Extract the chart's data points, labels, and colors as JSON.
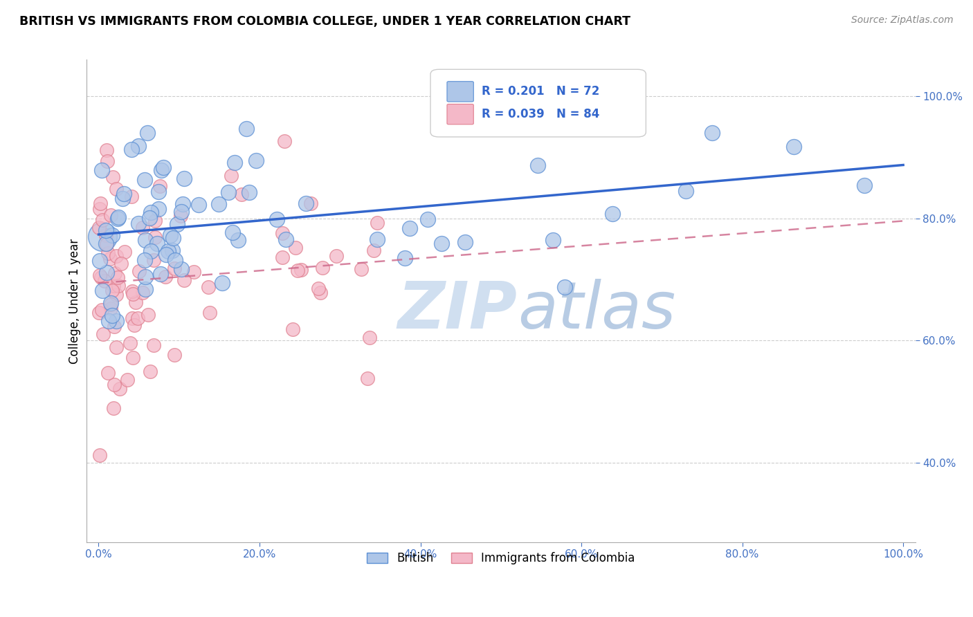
{
  "title": "BRITISH VS IMMIGRANTS FROM COLOMBIA COLLEGE, UNDER 1 YEAR CORRELATION CHART",
  "source": "Source: ZipAtlas.com",
  "ylabel": "College, Under 1 year",
  "R_british": 0.201,
  "N_british": 72,
  "R_colombia": 0.039,
  "N_colombia": 84,
  "british_color": "#aec6e8",
  "british_edge_color": "#5b8fd4",
  "british_line_color": "#3366cc",
  "colombia_color": "#f4b8c8",
  "colombia_edge_color": "#e08090",
  "colombia_line_color": "#cc6688",
  "watermark_zip": "ZIP",
  "watermark_atlas": "atlas",
  "xtick_labels": [
    "0.0%",
    "20.0%",
    "40.0%",
    "60.0%",
    "80.0%",
    "100.0%"
  ],
  "ytick_labels": [
    "40.0%",
    "60.0%",
    "80.0%",
    "100.0%"
  ],
  "ytick_vals": [
    0.4,
    0.6,
    0.8,
    1.0
  ],
  "xtick_vals": [
    0.0,
    0.2,
    0.4,
    0.6,
    0.8,
    1.0
  ],
  "british_scatter_seed": 12,
  "colombia_scatter_seed": 7,
  "legend_label_british": "British",
  "legend_label_colombia": "Immigrants from Colombia"
}
